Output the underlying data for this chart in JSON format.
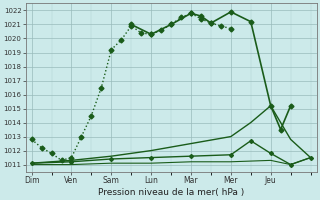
{
  "xlabel": "Pression niveau de la mer( hPa )",
  "background_color": "#cceaea",
  "grid_color": "#99bbbb",
  "line_color": "#1a5c1a",
  "days": [
    "Dim",
    "Ven",
    "Sam",
    "Lun",
    "Mar",
    "Mer",
    "Jeu"
  ],
  "ylim": [
    1010.5,
    1022.5
  ],
  "yticks": [
    1011,
    1012,
    1013,
    1014,
    1015,
    1016,
    1017,
    1018,
    1019,
    1020,
    1021,
    1022
  ],
  "lines": [
    {
      "x": [
        0,
        0.25,
        0.5,
        0.75,
        1.0,
        1.25,
        1.5,
        1.75,
        2.0,
        2.25,
        2.5,
        2.75,
        3.0,
        3.25,
        3.5,
        3.75,
        4.0,
        4.25,
        4.5,
        4.75,
        5.0
      ],
      "y": [
        1012.8,
        1012.2,
        1011.8,
        1011.3,
        1011.5,
        1013.0,
        1014.5,
        1016.5,
        1019.2,
        1019.9,
        1020.9,
        1020.4,
        1020.3,
        1020.6,
        1021.0,
        1021.5,
        1021.8,
        1021.4,
        1021.1,
        1020.9,
        1020.7
      ],
      "style": ":",
      "marker": "D",
      "markersize": 2.5,
      "linewidth": 1.0
    },
    {
      "x": [
        2.5,
        3.0,
        3.5,
        4.0,
        4.25,
        4.5,
        5.0,
        5.5,
        6.0,
        6.25,
        6.5
      ],
      "y": [
        1021.0,
        1020.3,
        1021.0,
        1021.8,
        1021.6,
        1021.1,
        1021.9,
        1021.2,
        1015.2,
        1013.5,
        1015.2
      ],
      "style": "-",
      "marker": "D",
      "markersize": 2.5,
      "linewidth": 1.2
    },
    {
      "x": [
        0,
        1.0,
        2.0,
        3.0,
        4.0,
        5.0,
        5.5,
        6.0,
        6.5,
        7.0
      ],
      "y": [
        1011.1,
        1011.3,
        1011.6,
        1012.0,
        1012.5,
        1013.0,
        1014.0,
        1015.2,
        1012.8,
        1011.5
      ],
      "style": "-",
      "marker": null,
      "markersize": 0,
      "linewidth": 1.0
    },
    {
      "x": [
        0,
        1.0,
        2.0,
        3.0,
        4.0,
        5.0,
        5.5,
        6.0,
        6.5,
        7.0
      ],
      "y": [
        1011.1,
        1011.2,
        1011.4,
        1011.5,
        1011.6,
        1011.7,
        1012.7,
        1011.8,
        1011.0,
        1011.5
      ],
      "style": "-",
      "marker": "D",
      "markersize": 2.0,
      "linewidth": 1.0
    },
    {
      "x": [
        0,
        1.0,
        2.0,
        3.0,
        4.0,
        5.0,
        6.0,
        6.5,
        7.0
      ],
      "y": [
        1011.0,
        1011.0,
        1011.1,
        1011.1,
        1011.2,
        1011.2,
        1011.3,
        1011.0,
        1011.5
      ],
      "style": "-",
      "marker": null,
      "markersize": 0,
      "linewidth": 0.8
    }
  ],
  "day_x_positions": [
    0,
    1,
    2,
    3,
    4,
    5,
    6
  ],
  "xlim": [
    -0.15,
    7.15
  ]
}
